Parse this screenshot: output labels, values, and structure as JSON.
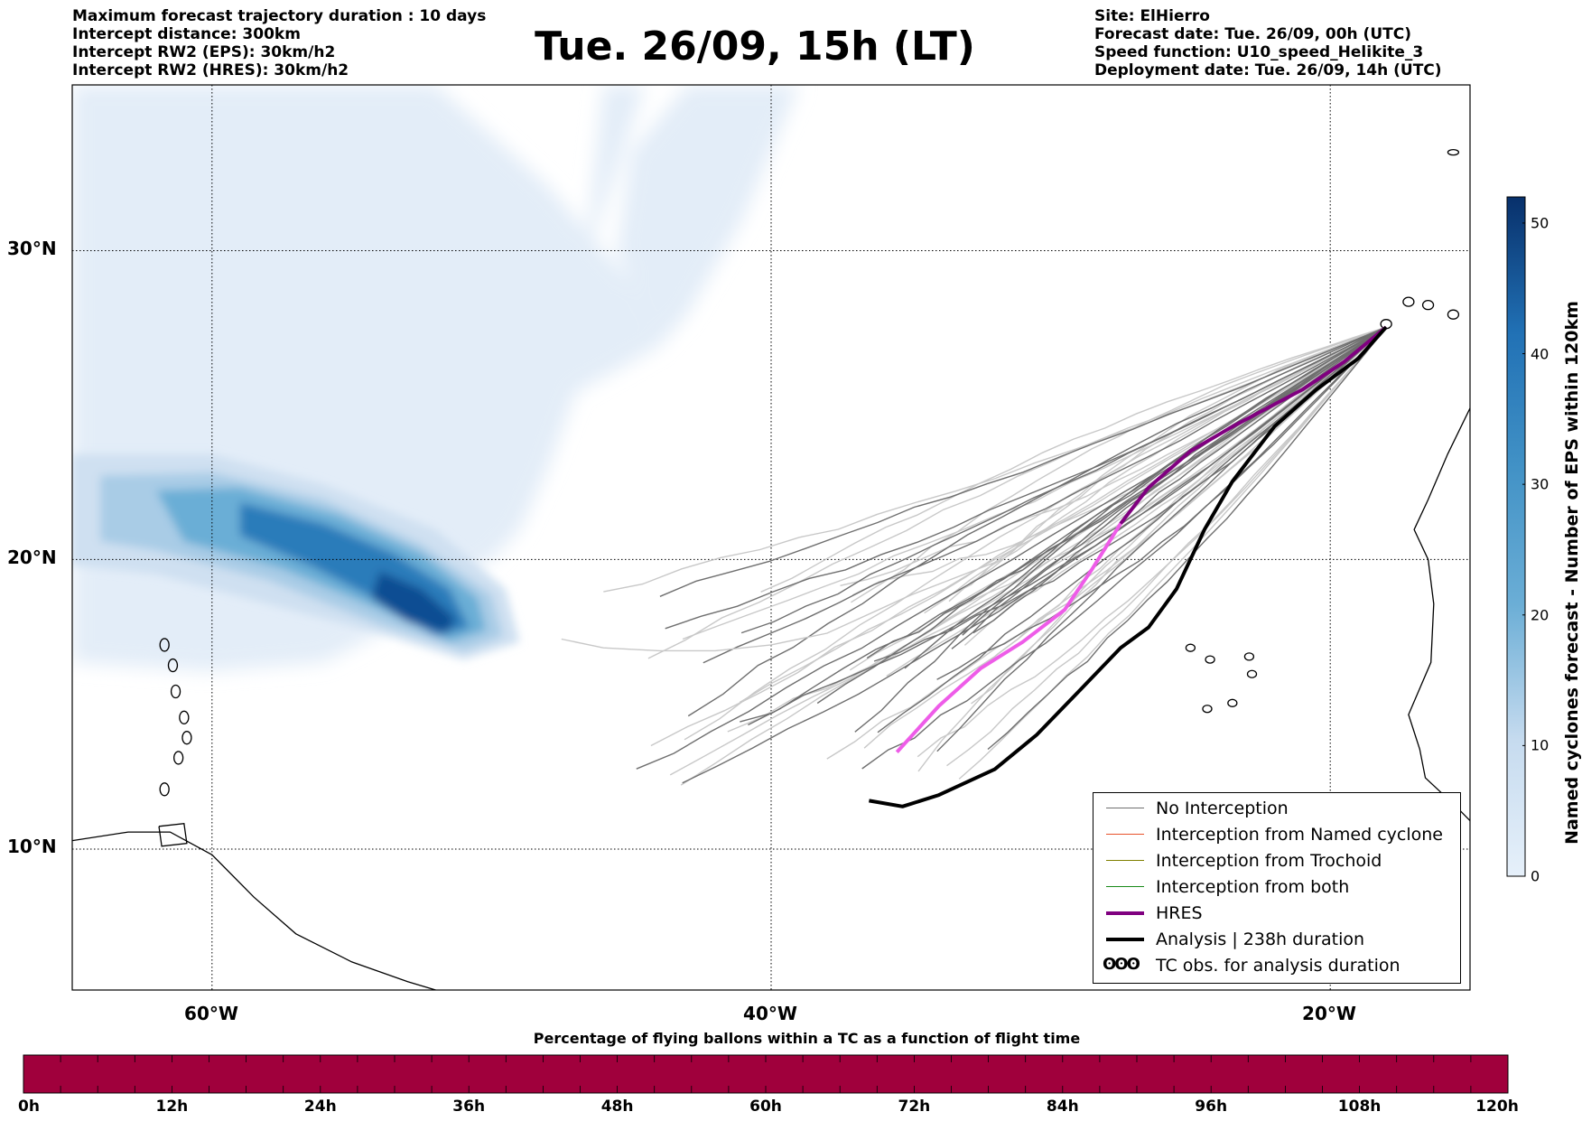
{
  "header": {
    "left_lines": [
      "Maximum forecast trajectory duration : 10 days",
      "Intercept distance: 300km",
      "Intercept RW2 (EPS):  30km/h2",
      "Intercept RW2 (HRES): 30km/h2"
    ],
    "title": "Tue. 26/09, 15h (LT)",
    "right_lines": [
      "Site: ElHierro",
      "Forecast date: Tue. 26/09, 00h (UTC)",
      "Speed function: U10_speed_Helikite_3",
      "Deployment date: Tue. 26/09, 14h (UTC)"
    ]
  },
  "map": {
    "lat_labels": [
      "30°N",
      "20°N",
      "10°N"
    ],
    "lon_labels": [
      "60°W",
      "40°W",
      "20°W"
    ],
    "lon_min": -65,
    "lon_max": -15,
    "lat_min": 5,
    "lat_max": 35,
    "gridlines": true,
    "site": {
      "name": "ElHierro",
      "lon": -18.0,
      "lat": 27.7
    }
  },
  "legend": {
    "items": [
      {
        "label": "No Interception",
        "color": "#707070"
      },
      {
        "label": "Interception from Named cyclone",
        "color": "#e8522a"
      },
      {
        "label": "Interception from Trochoid",
        "color": "#808000"
      },
      {
        "label": "Interception from both",
        "color": "#1a8a1a"
      },
      {
        "label": "HRES",
        "color": "#800080"
      },
      {
        "label": "Analysis | 238h duration",
        "color": "#000000"
      },
      {
        "label": "TC obs. for analysis duration",
        "symbol": "ʘʘʘ"
      }
    ]
  },
  "colorbar": {
    "title": "Named cyclones forecast - Number of EPS within 120km",
    "ticks": [
      "0",
      "10",
      "20",
      "30",
      "40",
      "50"
    ],
    "min": 0,
    "max": 52,
    "colors": [
      "#e6f0fa",
      "#08306b"
    ]
  },
  "time_bar": {
    "title": "Percentage of flying ballons within a TC as a function of flight time",
    "color": "#a0003c",
    "ticks": [
      "0h",
      "12h",
      "24h",
      "36h",
      "48h",
      "60h",
      "72h",
      "84h",
      "96h",
      "108h",
      "120h"
    ]
  },
  "tracks": {
    "hres": [
      [
        -18.0,
        27.6
      ],
      [
        -19.5,
        26.5
      ],
      [
        -21.0,
        25.6
      ],
      [
        -23.5,
        24.4
      ],
      [
        -25.0,
        23.6
      ],
      [
        -26.5,
        22.4
      ],
      [
        -27.5,
        21.2
      ],
      [
        -28.5,
        19.7
      ],
      [
        -29.5,
        18.3
      ],
      [
        -31.0,
        17.2
      ],
      [
        -32.5,
        16.3
      ],
      [
        -34.0,
        15.0
      ],
      [
        -35.5,
        13.4
      ]
    ],
    "analysis": [
      [
        -18.0,
        27.6
      ],
      [
        -19.0,
        26.6
      ],
      [
        -20.5,
        25.6
      ],
      [
        -22.0,
        24.4
      ],
      [
        -23.5,
        22.6
      ],
      [
        -24.5,
        21.0
      ],
      [
        -25.5,
        19.0
      ],
      [
        -26.5,
        17.7
      ],
      [
        -27.5,
        17.0
      ],
      [
        -29.0,
        15.5
      ],
      [
        -30.5,
        14.0
      ],
      [
        -32.0,
        12.8
      ],
      [
        -34.0,
        11.9
      ],
      [
        -35.3,
        11.5
      ],
      [
        -36.5,
        11.7
      ]
    ],
    "ensemble_count": 50
  }
}
